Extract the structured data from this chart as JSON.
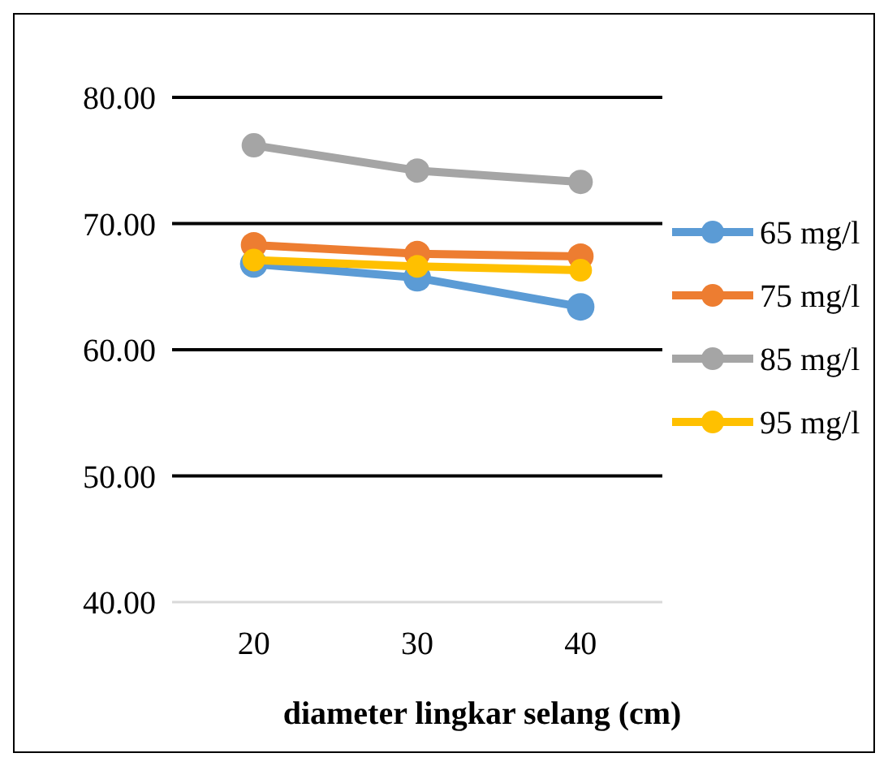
{
  "chart_data": {
    "type": "line",
    "xlabel": "diameter lingkar selang (cm)",
    "categories": [
      "20",
      "30",
      "40"
    ],
    "ylim": [
      40,
      80
    ],
    "yticks": [
      {
        "value": 40,
        "label": "40.00"
      },
      {
        "value": 50,
        "label": "50.00"
      },
      {
        "value": 60,
        "label": "60.00"
      },
      {
        "value": 70,
        "label": "70.00"
      },
      {
        "value": 80,
        "label": "80.00"
      }
    ],
    "grid": "y",
    "legend": "right",
    "marker": "circle",
    "series": [
      {
        "name": "65 mg/l",
        "color": "#5b9bd5",
        "values": [
          66.8,
          65.7,
          63.4
        ]
      },
      {
        "name": "75 mg/l",
        "color": "#ed7d31",
        "values": [
          68.3,
          67.6,
          67.4
        ]
      },
      {
        "name": "85 mg/l",
        "color": "#a5a5a5",
        "values": [
          76.2,
          74.2,
          73.3
        ]
      },
      {
        "name": "95 mg/l",
        "color": "#ffc000",
        "values": [
          67.1,
          66.6,
          66.3
        ]
      }
    ]
  }
}
